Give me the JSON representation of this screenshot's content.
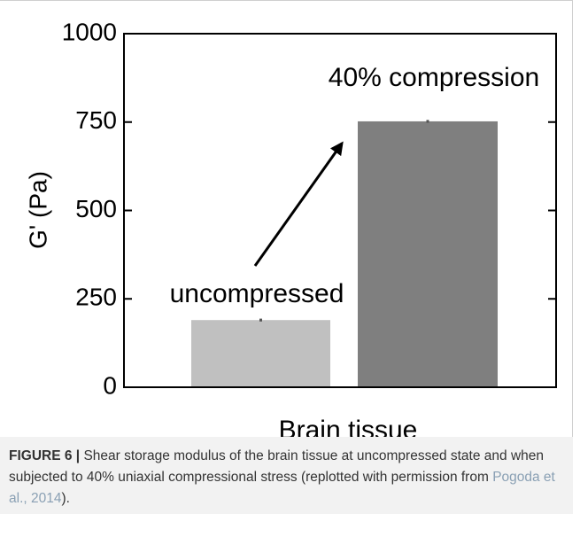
{
  "chart_data": {
    "type": "bar",
    "categories": [
      "uncompressed",
      "40% compression"
    ],
    "values": [
      190,
      752
    ],
    "errors": [
      4,
      4
    ],
    "colors": [
      "#c0c0c0",
      "#7f7f7f"
    ],
    "ylabel": "G' (Pa)",
    "xlabel": "Brain tissue",
    "ylim": [
      0,
      1000
    ],
    "yticks": [
      0,
      250,
      500,
      750,
      1000
    ]
  },
  "caption": {
    "label": "FIGURE 6 |",
    "text": " Shear storage modulus of the brain tissue at uncompressed state and when subjected to 40% uniaxial compressional stress (replotted with permission from ",
    "link": "Pogoda et al., 2014",
    "end": ")."
  }
}
